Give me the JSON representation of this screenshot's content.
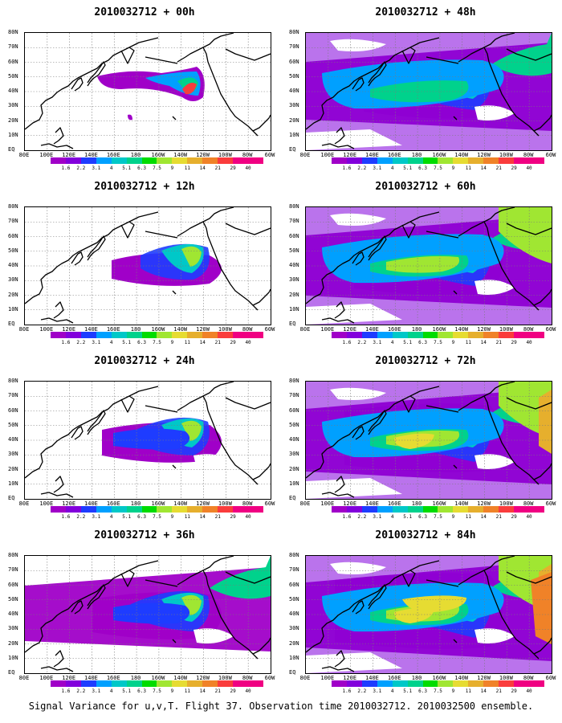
{
  "panels": [
    {
      "title": "2010032712 + 00h",
      "level": 0
    },
    {
      "title": "2010032712 + 48h",
      "level": 4
    },
    {
      "title": "2010032712 + 12h",
      "level": 1
    },
    {
      "title": "2010032712 + 60h",
      "level": 5
    },
    {
      "title": "2010032712 + 24h",
      "level": 2
    },
    {
      "title": "2010032712 + 72h",
      "level": 6
    },
    {
      "title": "2010032712 + 36h",
      "level": 3
    },
    {
      "title": "2010032712 + 84h",
      "level": 7
    }
  ],
  "lat_labels": [
    "80N",
    "70N",
    "60N",
    "50N",
    "40N",
    "30N",
    "20N",
    "10N",
    "EQ"
  ],
  "lon_labels": [
    "80E",
    "100E",
    "120E",
    "140E",
    "160E",
    "180",
    "160W",
    "140W",
    "120W",
    "100W",
    "80W",
    "60W"
  ],
  "colorbar": {
    "labels": [
      "1.6",
      "2.2",
      "3.1",
      "4",
      "5.1",
      "6.3",
      "7.5",
      "9",
      "11",
      "14",
      "21",
      "29",
      "40"
    ],
    "colors": [
      "#a000c8",
      "#8200dc",
      "#1e3cff",
      "#00a0ff",
      "#00c8c8",
      "#00d28c",
      "#00dc00",
      "#a0e632",
      "#e6dc32",
      "#e6af2d",
      "#f08228",
      "#fa3c3c",
      "#f00082"
    ]
  },
  "caption": "Signal Variance for u,v,T. Flight 37. Observation time 2010032712. 2010032500 ensemble."
}
